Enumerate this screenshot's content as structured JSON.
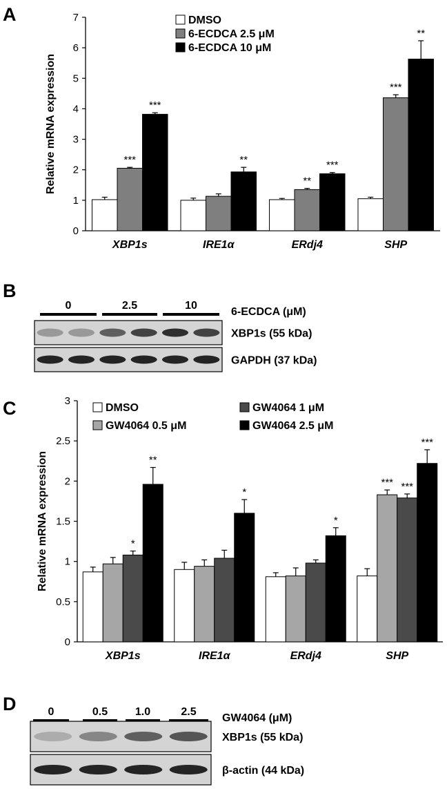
{
  "panels": [
    {
      "letter": "A"
    },
    {
      "letter": "B"
    },
    {
      "letter": "C"
    },
    {
      "letter": "D"
    }
  ],
  "colors": {
    "DMSO": "#ffffff",
    "gray": "#7f7f7f",
    "light_gray": "#a6a6a6",
    "dark_gray": "#4a4a4a",
    "black": "#000000"
  },
  "chart_data": [
    {
      "type": "bar",
      "panel": "A",
      "ylabel": "Relative mRNA expression",
      "ylim": [
        0,
        7
      ],
      "yticks": [
        "0",
        "1",
        "2",
        "3",
        "4",
        "5",
        "6",
        "7"
      ],
      "categories": [
        "XBP1s",
        "IRE1α",
        "ERdj4",
        "SHP"
      ],
      "legend_position": "top",
      "series": [
        {
          "name": "DMSO",
          "values": [
            1.02,
            1.0,
            1.02,
            1.05
          ],
          "errors": [
            0.08,
            0.07,
            0.04,
            0.05
          ],
          "sig": [
            "",
            "",
            "",
            ""
          ]
        },
        {
          "name": "6-ECDCA 2.5 μM",
          "values": [
            2.05,
            1.13,
            1.35,
            4.36
          ],
          "errors": [
            0.03,
            0.08,
            0.04,
            0.1
          ],
          "sig": [
            "***",
            "",
            "**",
            "***"
          ]
        },
        {
          "name": "6-ECDCA 10 μM",
          "values": [
            3.82,
            1.93,
            1.87,
            5.63
          ],
          "errors": [
            0.05,
            0.15,
            0.04,
            0.6
          ],
          "sig": [
            "***",
            "**",
            "***",
            "**"
          ]
        }
      ]
    },
    {
      "type": "bar",
      "panel": "C",
      "ylabel": "Relative mRNA expression",
      "ylim": [
        0,
        3
      ],
      "yticks": [
        "0",
        "0.5",
        "1",
        "1.5",
        "2",
        "2.5",
        "3"
      ],
      "categories": [
        "XBP1s",
        "IRE1α",
        "ERdj4",
        "SHP"
      ],
      "legend_position": "top",
      "series": [
        {
          "name": "DMSO",
          "values": [
            0.87,
            0.9,
            0.81,
            0.82
          ],
          "errors": [
            0.06,
            0.09,
            0.05,
            0.09
          ],
          "sig": [
            "",
            "",
            "",
            ""
          ]
        },
        {
          "name": "GW4064 0.5 μM",
          "values": [
            0.97,
            0.94,
            0.82,
            1.83
          ],
          "errors": [
            0.08,
            0.08,
            0.1,
            0.06
          ],
          "sig": [
            "",
            "",
            "",
            "***"
          ]
        },
        {
          "name": "GW4064 1 μM",
          "values": [
            1.08,
            1.04,
            0.98,
            1.79
          ],
          "errors": [
            0.05,
            0.1,
            0.04,
            0.05
          ],
          "sig": [
            "*",
            "",
            "",
            "***"
          ]
        },
        {
          "name": "GW4064 2.5 μM",
          "values": [
            1.96,
            1.6,
            1.32,
            2.22
          ],
          "errors": [
            0.21,
            0.17,
            0.1,
            0.17
          ],
          "sig": [
            "**",
            "*",
            "*",
            "***"
          ]
        }
      ]
    }
  ],
  "blot_B": {
    "groups": [
      "0",
      "2.5",
      "10"
    ],
    "treatment": "6-ECDCA (μM)",
    "rows": [
      {
        "label": "XBP1s (55 kDa)",
        "intensities": [
          0.3,
          0.3,
          0.6,
          0.75,
          0.85,
          0.75
        ]
      },
      {
        "label": "GAPDH (37 kDa)",
        "intensities": [
          0.9,
          0.9,
          0.9,
          0.9,
          0.9,
          0.9
        ]
      }
    ]
  },
  "blot_D": {
    "groups": [
      "0",
      "0.5",
      "1.0",
      "2.5"
    ],
    "treatment": "GW4064 (μM)",
    "rows": [
      {
        "label": "XBP1s (55 kDa)",
        "intensities": [
          0.2,
          0.4,
          0.6,
          0.65
        ]
      },
      {
        "label": "β-actin (44 kDa)",
        "intensities": [
          0.9,
          0.9,
          0.9,
          0.9
        ]
      }
    ]
  }
}
